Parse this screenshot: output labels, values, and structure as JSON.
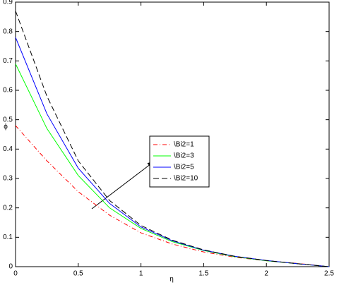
{
  "chart_data": {
    "type": "line",
    "x_label": "η",
    "y_label": "ϕ",
    "x": [
      0,
      0.25,
      0.5,
      0.75,
      1.0,
      1.25,
      1.5,
      1.75,
      2.0,
      2.25,
      2.5
    ],
    "series": [
      {
        "name": "\\Bi2=1",
        "color": "#ff0000",
        "linestyle": "-.",
        "values": [
          0.48,
          0.36,
          0.255,
          0.175,
          0.115,
          0.077,
          0.05,
          0.032,
          0.02,
          0.011,
          0
        ]
      },
      {
        "name": "\\Bi2=3",
        "color": "#00ff00",
        "linestyle": "-",
        "values": [
          0.69,
          0.47,
          0.31,
          0.2,
          0.13,
          0.085,
          0.055,
          0.034,
          0.02,
          0.01,
          0
        ]
      },
      {
        "name": "\\Bi2=5",
        "color": "#0000ff",
        "linestyle": "-",
        "values": [
          0.78,
          0.52,
          0.335,
          0.215,
          0.135,
          0.088,
          0.056,
          0.035,
          0.021,
          0.01,
          0
        ]
      },
      {
        "name": "\\Bi2=10",
        "color": "#000000",
        "linestyle": "--",
        "values": [
          0.87,
          0.58,
          0.36,
          0.225,
          0.14,
          0.09,
          0.057,
          0.035,
          0.021,
          0.01,
          0
        ]
      }
    ],
    "xlim": [
      0,
      2.5
    ],
    "ylim": [
      0,
      0.9
    ],
    "xticks": [
      0,
      0.5,
      1,
      1.5,
      2,
      2.5
    ],
    "yticks": [
      0,
      0.1,
      0.2,
      0.3,
      0.4,
      0.5,
      0.6,
      0.7,
      0.8,
      0.9
    ]
  }
}
